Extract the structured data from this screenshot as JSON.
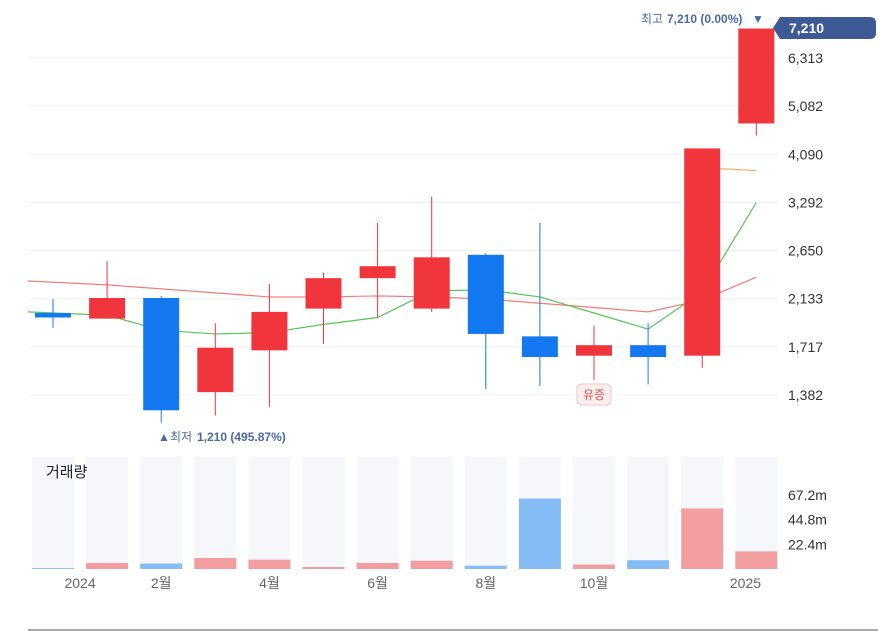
{
  "chart_data": {
    "type": "candlestick",
    "x_labels": [
      "2024",
      "2월",
      "4월",
      "6월",
      "8월",
      "10월",
      "2025"
    ],
    "y_ticks": [
      "6,313",
      "5,082",
      "4,090",
      "3,292",
      "2,650",
      "2,133",
      "1,717",
      "1,382"
    ],
    "y_tick_values": [
      6313,
      5082,
      4090,
      3292,
      2650,
      2133,
      1717,
      1382
    ],
    "y_scale": "log",
    "volume_title": "거래량",
    "volume_ticks": [
      "67.2m",
      "44.8m",
      "22.4m"
    ],
    "volume_tick_values": [
      67.2,
      44.8,
      22.4
    ],
    "volume_unit": "m",
    "colors": {
      "up": "#f0363c",
      "down": "#1478f0",
      "ma_short": "#58c558",
      "ma_mid": "#f07b7b",
      "ma_long": "#f4b06a",
      "vol_up": "#f29d9f",
      "vol_down": "#86bcf5",
      "tag": "#3d5a97"
    },
    "candles": [
      {
        "open": 2000,
        "close": 1960,
        "high": 2130,
        "low": 1870,
        "volume": 0.8
      },
      {
        "open": 1950,
        "close": 2140,
        "high": 2530,
        "low": 1950,
        "volume": 5.5
      },
      {
        "open": 2140,
        "close": 1290,
        "high": 2160,
        "low": 1220,
        "volume": 5.0
      },
      {
        "open": 1400,
        "close": 1710,
        "high": 1910,
        "low": 1260,
        "volume": 10.0
      },
      {
        "open": 1690,
        "close": 2010,
        "high": 2280,
        "low": 1310,
        "volume": 8.5
      },
      {
        "open": 2040,
        "close": 2340,
        "high": 2400,
        "low": 1740,
        "volume": 1.8
      },
      {
        "open": 2340,
        "close": 2470,
        "high": 3000,
        "low": 1960,
        "volume": 5.5
      },
      {
        "open": 2040,
        "close": 2570,
        "high": 3380,
        "low": 2010,
        "volume": 7.5
      },
      {
        "open": 2600,
        "close": 1820,
        "high": 2620,
        "low": 1420,
        "volume": 3.0
      },
      {
        "open": 1800,
        "close": 1640,
        "high": 3000,
        "low": 1440,
        "volume": 64.0
      },
      {
        "open": 1650,
        "close": 1730,
        "high": 1890,
        "low": 1480,
        "volume": 4.0
      },
      {
        "open": 1730,
        "close": 1640,
        "high": 1910,
        "low": 1450,
        "volume": 8.0
      },
      {
        "open": 1650,
        "close": 4200,
        "high": 4200,
        "low": 1560,
        "volume": 55.0
      },
      {
        "open": 4700,
        "close": 7210,
        "high": 7210,
        "low": 4450,
        "volume": 16.0
      }
    ],
    "ma_short": [
      2010,
      1980,
      1850,
      1820,
      1830,
      1900,
      1960,
      2210,
      2220,
      2150,
      2000,
      1860,
      2200,
      3290
    ],
    "ma_mid": [
      2310,
      2270,
      2230,
      2190,
      2150,
      2150,
      2160,
      2150,
      2130,
      2090,
      2050,
      2010,
      2120,
      2350
    ],
    "ma_long": [
      null,
      null,
      null,
      null,
      null,
      null,
      null,
      null,
      null,
      null,
      null,
      null,
      3850,
      3800
    ],
    "high_marker": {
      "prefix": "최고",
      "value": "7,210 (0.00%)",
      "arrow": "▼"
    },
    "low_marker": {
      "prefix": "최저",
      "value": "1,210 (495.87%)",
      "arrow": "▲"
    },
    "last_price": "7,210",
    "event_badge": "유증",
    "event_index": 10
  }
}
